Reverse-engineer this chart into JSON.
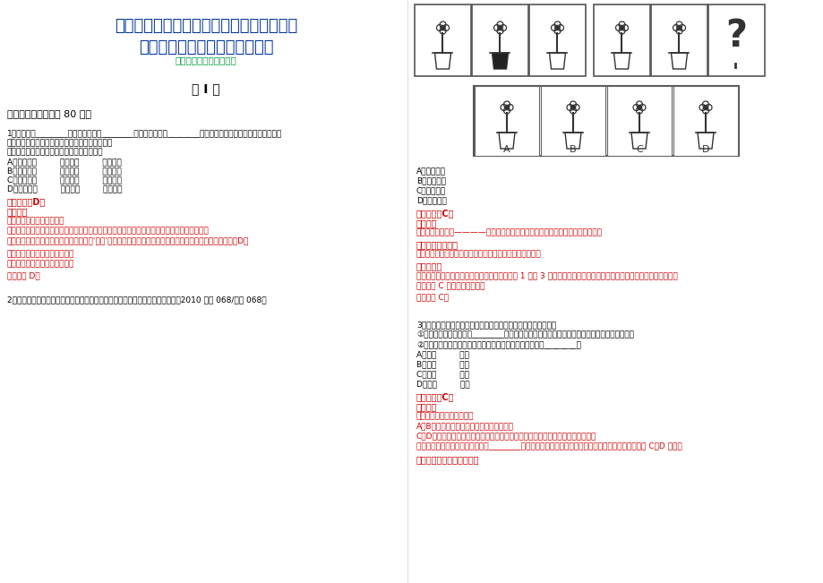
{
  "bg_color": "#ffffff",
  "title_line1": "江苏南京水利科学研究院招考职用非在编工",
  "title_line2": "作人员笔试参考题库附答案详解",
  "subtitle": "（图片大小可自由调整）",
  "section_title": "第 I 卷",
  "section1_header": "一、单项选择题（共 80 题）",
  "q1_text": "1．「贵脸」________权利，「富脸」________金錢，「穷脸」________麻烦，要想让官员们的「阴阳脸」转过",
  "q1_text2": "来，就必须从提高老百姓的政治、经济地位入手。",
  "q1_text3": "依次填入下列横线处词语，最恰当的一组是：",
  "q1_a": "A、只能带来         能夠带来         必须带来",
  "q1_b": "B、必须带来         就会带来         可以带来",
  "q1_c": "C、可以带来         能夠带来         就会带来",
  "q1_d": "D、能夠带来         可以带来         只能带来",
  "q1_answer_label": "正确答案：D。",
  "q1_analysis_label": "答案解析",
  "q1_analysis1": "第三空：本空为语义关系。",
  "q1_analysis2": "根据题意「贵脸」、「富脸」对应「权利、金錢」意义并列，「穷脸」对应「麻烦」意义消极。",
  "q1_analysis3": "「只能带来」表示唯一能带来的只有；「‘穷脸’只能带来麻烦」体现了老百姓的困苦，语义恰当，答案锁定为D。",
  "q1_analysis4": "第一、二空：本空为并列关系。",
  "q1_analysis5": "「能夠」、「可以」并列恰当。",
  "q1_analysis6": "故本题选 D。",
  "q2_text": "2．从所给四个选项中，选择最合适的一个填入问号处，使之呈现一定规律性：《2010 广东 068/深圳 068》",
  "q2_opts": [
    "A、如图所示",
    "B、如图所示",
    "C、如图所示",
    "D、如图所示"
  ],
  "q2_answer_label": "正确答案：C。",
  "q2_analysis_label": "答案解析",
  "q2_analysis1": "第一步：判断题型————本题题干中图形自身特点非常明显，首先考虑找共性。",
  "q2_analysis2": "第二步：题目详解",
  "q2_analysis3": "突破口：题干图形都是花盆的简笔画，考虑图形间的共性。",
  "q2_analysis4": "本题规律：",
  "q2_analysis5": "第一组图中，只有一个花盆出现黑色区域，且图 1 和图 3 花朵朝向相同，所以？处的花盆应为全白，且花的朝向应该向",
  "q2_analysis6": "右，只有 C 选项符合此规律。",
  "q2_analysis7": "故本题选 C。",
  "q3_text": "3．将下列选项中的词语依次填入各句横线处，最恰当的一组是：",
  "q3_text2": "①两汉时期汉代衣服几经________，绕至臀部，然后用绸带系束，衣上还绘有精美华丽的纹样。",
  "q3_text3": "②王子和公主的婚礼办得十分盛大，亲眼目睡的民众们无不________。",
  "q3_a": "A、周折         欣罡",
  "q3_b": "B、周折         叹罡",
  "q3_c": "C、转折         欣罡",
  "q3_d": "D、转折         叹罡",
  "q3_answer_label": "正确答案：C。",
  "q3_analysis_label": "答案解析",
  "q3_analysis1": "第一空：本空为词语辨析。",
  "q3_analysis2": "A、B项「周折」指事情进程曲折，不顺利。",
  "q3_analysis3": "C、D项「转折」指事物在发展过程中改变原来的方向、形势等，有回旋弯折之意。",
  "q3_analysis4": "结合语境「两汉时期汉代衣服几经________」，是谈两汉时期服饥的变化，应填「几经转折」，答案在 C、D 之中。",
  "q3_analysis5": "第二空：本空为词语辨析。",
  "title_color": "#003399",
  "subtitle_color": "#009933",
  "black_color": "#000000",
  "red_color": "#cc0000"
}
